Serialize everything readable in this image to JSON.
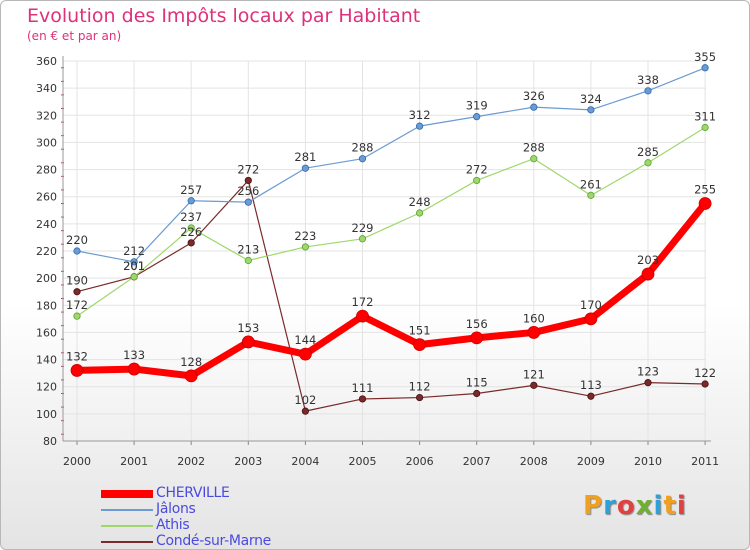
{
  "title": "Evolution des Impôts locaux par Habitant",
  "subtitle": "(en € et par an)",
  "logo": {
    "text": "Proxiti",
    "colors": [
      "#f0a020",
      "#2ea0d8",
      "#e04040",
      "#70b030",
      "#2ea0d8",
      "#f0a020",
      "#e04040"
    ]
  },
  "chart_data": {
    "type": "line",
    "title": "Evolution des Impôts locaux par Habitant",
    "subtitle": "(en € et par an)",
    "xlabel": "",
    "ylabel": "",
    "x": [
      "2000",
      "2001",
      "2002",
      "2003",
      "2004",
      "2005",
      "2006",
      "2007",
      "2008",
      "2009",
      "2010",
      "2011"
    ],
    "ylim": [
      80,
      360
    ],
    "yticks": [
      80,
      100,
      120,
      140,
      160,
      180,
      200,
      220,
      240,
      260,
      280,
      300,
      320,
      340,
      360
    ],
    "grid": true,
    "legend_position": "bottom-left",
    "series": [
      {
        "name": "CHERVILLE",
        "color": "#ff0000",
        "values": [
          132,
          133,
          128,
          153,
          144,
          172,
          151,
          156,
          160,
          170,
          203,
          255
        ]
      },
      {
        "name": "Jâlons",
        "color": "#6b9bd2",
        "values": [
          220,
          212,
          257,
          256,
          281,
          288,
          312,
          319,
          326,
          324,
          338,
          355
        ]
      },
      {
        "name": "Athis",
        "color": "#9ed86b",
        "values": [
          172,
          201,
          237,
          213,
          223,
          229,
          248,
          272,
          288,
          261,
          285,
          311
        ]
      },
      {
        "name": "Condé-sur-Marne",
        "color": "#7a2a2a",
        "values": [
          190,
          201,
          226,
          272,
          102,
          111,
          112,
          115,
          121,
          113,
          123,
          122
        ]
      }
    ]
  }
}
